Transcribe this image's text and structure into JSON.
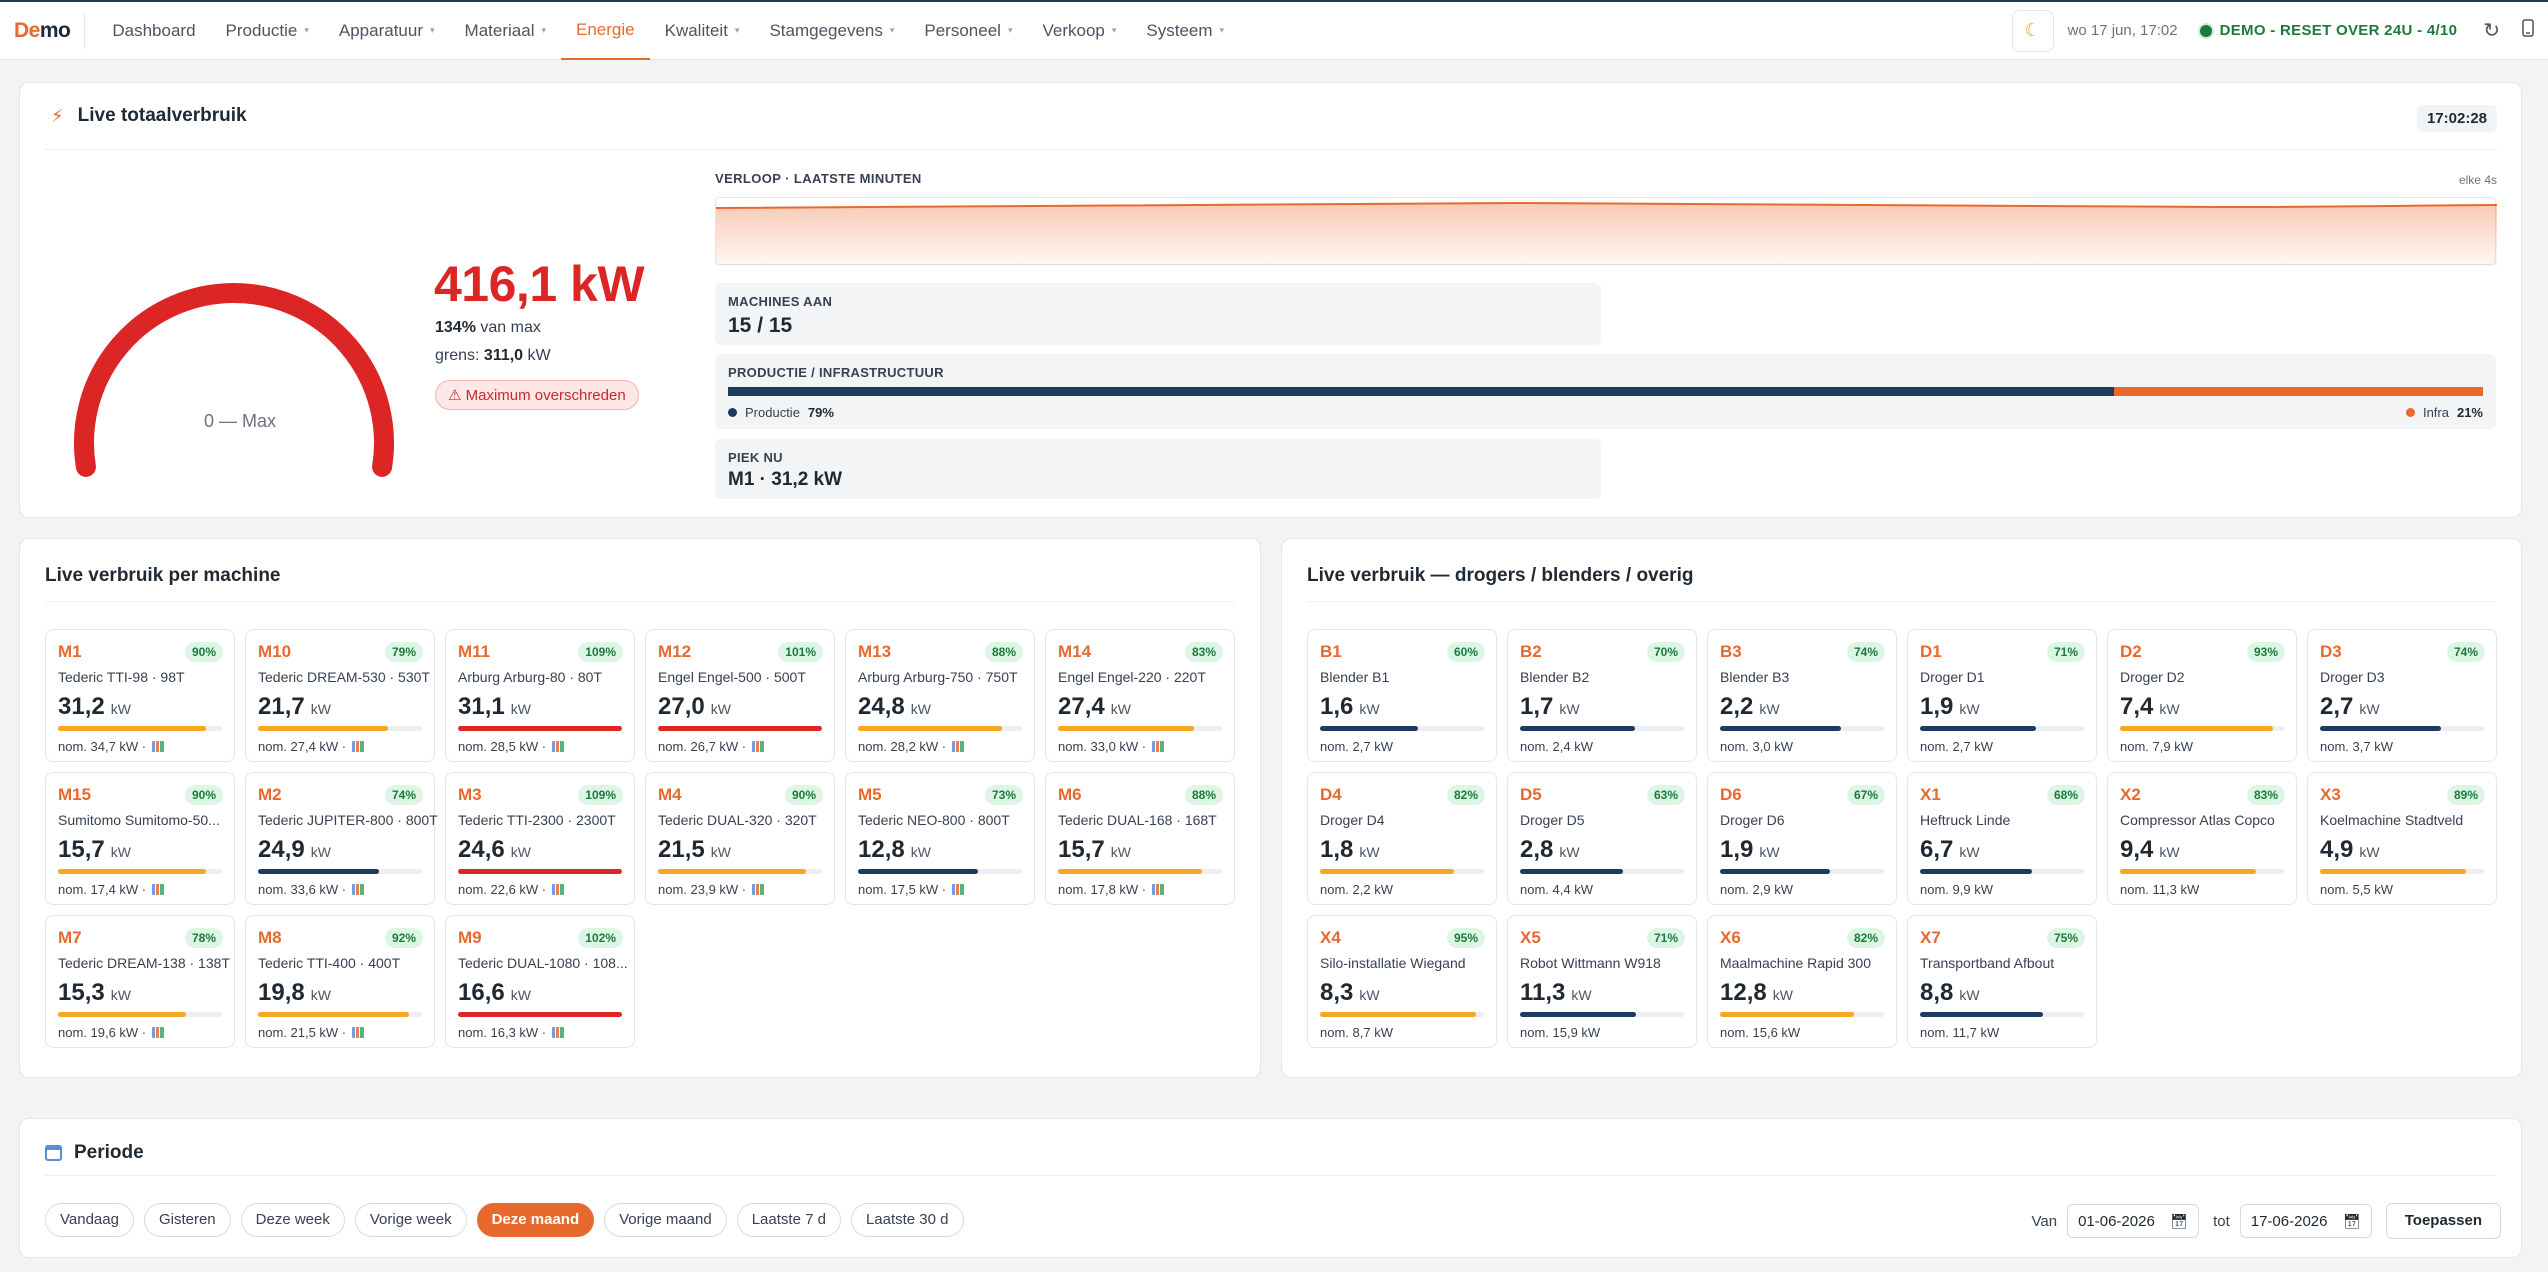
{
  "app": {
    "logo_a": "De",
    "logo_b": "mo"
  },
  "nav": {
    "items": [
      {
        "label": "Dashboard",
        "caret": false,
        "active": false
      },
      {
        "label": "Productie",
        "caret": true,
        "active": false
      },
      {
        "label": "Apparatuur",
        "caret": true,
        "active": false
      },
      {
        "label": "Materiaal",
        "caret": true,
        "active": false
      },
      {
        "label": "Energie",
        "caret": false,
        "active": true
      },
      {
        "label": "Kwaliteit",
        "caret": true,
        "active": false
      },
      {
        "label": "Stamgegevens",
        "caret": true,
        "active": false
      },
      {
        "label": "Personeel",
        "caret": true,
        "active": false
      },
      {
        "label": "Verkoop",
        "caret": true,
        "active": false
      },
      {
        "label": "Systeem",
        "caret": true,
        "active": false
      }
    ],
    "date": "wo 17 jun, 17:02",
    "demo_badge": "DEMO - RESET OVER 24U - 4/10"
  },
  "live_total": {
    "title": "Live totaalverbruik",
    "clock": "17:02:28",
    "gauge_caption": "0 — Max",
    "gauge_fraction": 1.0,
    "kw": "416,1 kW",
    "pct_value": "134%",
    "pct_suffix": "van max",
    "limit_prefix": "grens:",
    "limit_value": "311,0",
    "limit_unit": "kW",
    "max_badge": "Maximum overschreden",
    "trend_label": "VERLOOP · LAATSTE MINUTEN",
    "trend_every": "elke 4s",
    "machines_label": "MACHINES AAN",
    "machines_value": "15 / 15",
    "split_label": "PRODUCTIE / INFRASTRUCTUUR",
    "prod_label": "Productie",
    "prod_pct": "79%",
    "prod_fraction": 0.79,
    "infra_label": "Infra",
    "infra_pct": "21%",
    "peak_label": "PIEK NU",
    "peak_value": "M1 · 31,2 kW"
  },
  "colors": {
    "accent": "#e8692e",
    "navy": "#1e3a5f",
    "red": "#dc2626",
    "amber": "#f5a623",
    "green": "#1d7a3a"
  },
  "machines": {
    "title": "Live verbruik per machine",
    "tiles": [
      {
        "code": "M1",
        "pct": "90%",
        "name": "Tederic TTI-98 · 98T",
        "kw": "31,2",
        "nom": "nom. 34,7 kW ·",
        "fill": 0.9,
        "color": "amber",
        "chart": true
      },
      {
        "code": "M10",
        "pct": "79%",
        "name": "Tederic DREAM-530 · 530T",
        "kw": "21,7",
        "nom": "nom. 27,4 kW ·",
        "fill": 0.79,
        "color": "amber",
        "chart": true
      },
      {
        "code": "M11",
        "pct": "109%",
        "name": "Arburg Arburg-80 · 80T",
        "kw": "31,1",
        "nom": "nom. 28,5 kW ·",
        "fill": 1.0,
        "color": "red",
        "chart": true
      },
      {
        "code": "M12",
        "pct": "101%",
        "name": "Engel Engel-500 · 500T",
        "kw": "27,0",
        "nom": "nom. 26,7 kW ·",
        "fill": 1.0,
        "color": "red",
        "chart": true
      },
      {
        "code": "M13",
        "pct": "88%",
        "name": "Arburg Arburg-750 · 750T",
        "kw": "24,8",
        "nom": "nom. 28,2 kW ·",
        "fill": 0.88,
        "color": "amber",
        "chart": true
      },
      {
        "code": "M14",
        "pct": "83%",
        "name": "Engel Engel-220 · 220T",
        "kw": "27,4",
        "nom": "nom. 33,0 kW ·",
        "fill": 0.83,
        "color": "amber",
        "chart": true
      },
      {
        "code": "M15",
        "pct": "90%",
        "name": "Sumitomo Sumitomo-50...",
        "kw": "15,7",
        "nom": "nom. 17,4 kW ·",
        "fill": 0.9,
        "color": "amber",
        "chart": true
      },
      {
        "code": "M2",
        "pct": "74%",
        "name": "Tederic JUPITER-800 · 800T",
        "kw": "24,9",
        "nom": "nom. 33,6 kW ·",
        "fill": 0.74,
        "color": "navy",
        "chart": true
      },
      {
        "code": "M3",
        "pct": "109%",
        "name": "Tederic TTI-2300 · 2300T",
        "kw": "24,6",
        "nom": "nom. 22,6 kW ·",
        "fill": 1.0,
        "color": "red",
        "chart": true
      },
      {
        "code": "M4",
        "pct": "90%",
        "name": "Tederic DUAL-320 · 320T",
        "kw": "21,5",
        "nom": "nom. 23,9 kW ·",
        "fill": 0.9,
        "color": "amber",
        "chart": true
      },
      {
        "code": "M5",
        "pct": "73%",
        "name": "Tederic NEO-800 · 800T",
        "kw": "12,8",
        "nom": "nom. 17,5 kW ·",
        "fill": 0.73,
        "color": "navy",
        "chart": true
      },
      {
        "code": "M6",
        "pct": "88%",
        "name": "Tederic DUAL-168 · 168T",
        "kw": "15,7",
        "nom": "nom. 17,8 kW ·",
        "fill": 0.88,
        "color": "amber",
        "chart": true
      },
      {
        "code": "M7",
        "pct": "78%",
        "name": "Tederic DREAM-138 · 138T",
        "kw": "15,3",
        "nom": "nom. 19,6 kW ·",
        "fill": 0.78,
        "color": "amber",
        "chart": true
      },
      {
        "code": "M8",
        "pct": "92%",
        "name": "Tederic TTI-400 · 400T",
        "kw": "19,8",
        "nom": "nom. 21,5 kW ·",
        "fill": 0.92,
        "color": "amber",
        "chart": true
      },
      {
        "code": "M9",
        "pct": "102%",
        "name": "Tederic DUAL-1080 · 108...",
        "kw": "16,6",
        "nom": "nom. 16,3 kW ·",
        "fill": 1.0,
        "color": "red",
        "chart": true
      }
    ]
  },
  "other": {
    "title": "Live verbruik — drogers / blenders / overig",
    "tiles": [
      {
        "code": "B1",
        "pct": "60%",
        "name": "Blender B1",
        "kw": "1,6",
        "nom": "nom. 2,7 kW",
        "fill": 0.6,
        "color": "navy",
        "chart": false
      },
      {
        "code": "B2",
        "pct": "70%",
        "name": "Blender B2",
        "kw": "1,7",
        "nom": "nom. 2,4 kW",
        "fill": 0.7,
        "color": "navy",
        "chart": false
      },
      {
        "code": "B3",
        "pct": "74%",
        "name": "Blender B3",
        "kw": "2,2",
        "nom": "nom. 3,0 kW",
        "fill": 0.74,
        "color": "navy",
        "chart": false
      },
      {
        "code": "D1",
        "pct": "71%",
        "name": "Droger D1",
        "kw": "1,9",
        "nom": "nom. 2,7 kW",
        "fill": 0.71,
        "color": "navy",
        "chart": false
      },
      {
        "code": "D2",
        "pct": "93%",
        "name": "Droger D2",
        "kw": "7,4",
        "nom": "nom. 7,9 kW",
        "fill": 0.93,
        "color": "amber",
        "chart": false
      },
      {
        "code": "D3",
        "pct": "74%",
        "name": "Droger D3",
        "kw": "2,7",
        "nom": "nom. 3,7 kW",
        "fill": 0.74,
        "color": "navy",
        "chart": false
      },
      {
        "code": "D4",
        "pct": "82%",
        "name": "Droger D4",
        "kw": "1,8",
        "nom": "nom. 2,2 kW",
        "fill": 0.82,
        "color": "amber",
        "chart": false
      },
      {
        "code": "D5",
        "pct": "63%",
        "name": "Droger D5",
        "kw": "2,8",
        "nom": "nom. 4,4 kW",
        "fill": 0.63,
        "color": "navy",
        "chart": false
      },
      {
        "code": "D6",
        "pct": "67%",
        "name": "Droger D6",
        "kw": "1,9",
        "nom": "nom. 2,9 kW",
        "fill": 0.67,
        "color": "navy",
        "chart": false
      },
      {
        "code": "X1",
        "pct": "68%",
        "name": "Heftruck Linde",
        "kw": "6,7",
        "nom": "nom. 9,9 kW",
        "fill": 0.68,
        "color": "navy",
        "chart": false
      },
      {
        "code": "X2",
        "pct": "83%",
        "name": "Compressor Atlas Copco",
        "kw": "9,4",
        "nom": "nom. 11,3 kW",
        "fill": 0.83,
        "color": "amber",
        "chart": false
      },
      {
        "code": "X3",
        "pct": "89%",
        "name": "Koelmachine Stadtveld",
        "kw": "4,9",
        "nom": "nom. 5,5 kW",
        "fill": 0.89,
        "color": "amber",
        "chart": false
      },
      {
        "code": "X4",
        "pct": "95%",
        "name": "Silo-installatie Wiegand",
        "kw": "8,3",
        "nom": "nom. 8,7 kW",
        "fill": 0.95,
        "color": "amber",
        "chart": false
      },
      {
        "code": "X5",
        "pct": "71%",
        "name": "Robot Wittmann W918",
        "kw": "11,3",
        "nom": "nom. 15,9 kW",
        "fill": 0.71,
        "color": "navy",
        "chart": false
      },
      {
        "code": "X6",
        "pct": "82%",
        "name": "Maalmachine Rapid 300",
        "kw": "12,8",
        "nom": "nom. 15,6 kW",
        "fill": 0.82,
        "color": "amber",
        "chart": false
      },
      {
        "code": "X7",
        "pct": "75%",
        "name": "Transportband Afbout",
        "kw": "8,8",
        "nom": "nom. 11,7 kW",
        "fill": 0.75,
        "color": "navy",
        "chart": false
      }
    ]
  },
  "kw_unit": "kW",
  "periode": {
    "title": "Periode",
    "chips": [
      {
        "label": "Vandaag",
        "active": false
      },
      {
        "label": "Gisteren",
        "active": false
      },
      {
        "label": "Deze week",
        "active": false
      },
      {
        "label": "Vorige week",
        "active": false
      },
      {
        "label": "Deze maand",
        "active": true
      },
      {
        "label": "Vorige maand",
        "active": false
      },
      {
        "label": "Laatste 7 d",
        "active": false
      },
      {
        "label": "Laatste 30 d",
        "active": false
      }
    ],
    "from_label": "Van",
    "from_value": "01-06-2026",
    "to_label": "tot",
    "to_value": "17-06-2026",
    "apply": "Toepassen"
  }
}
